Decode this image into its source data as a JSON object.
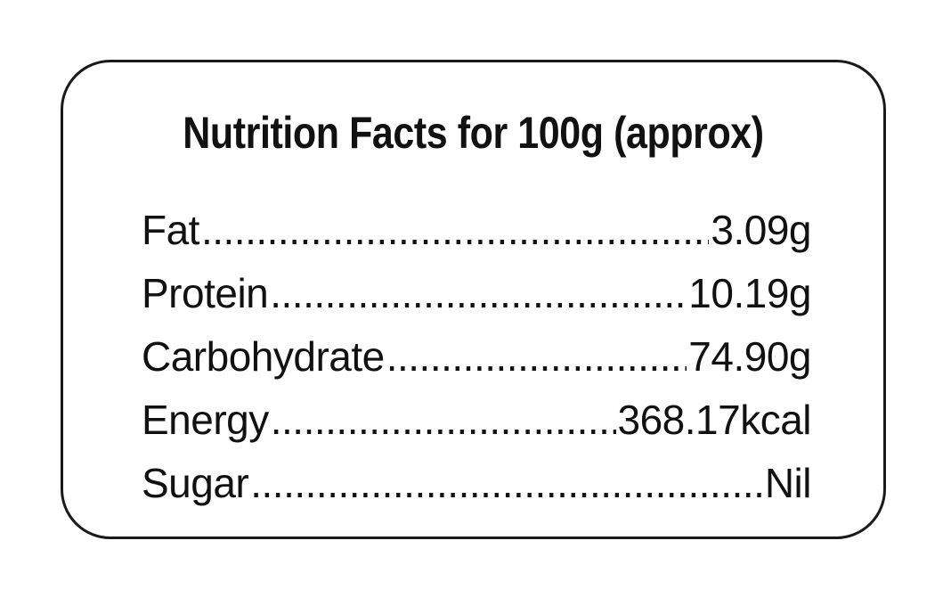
{
  "label": {
    "title": "Nutrition Facts for 100g (approx)",
    "rows": [
      {
        "name": "Fat",
        "value": "3.09g"
      },
      {
        "name": "Protein",
        "value": "10.19g"
      },
      {
        "name": "Carbohydrate",
        "value": "74.90g"
      },
      {
        "name": "Energy",
        "value": "368.17kcal"
      },
      {
        "name": "Sugar",
        "value": "Nil"
      }
    ]
  }
}
